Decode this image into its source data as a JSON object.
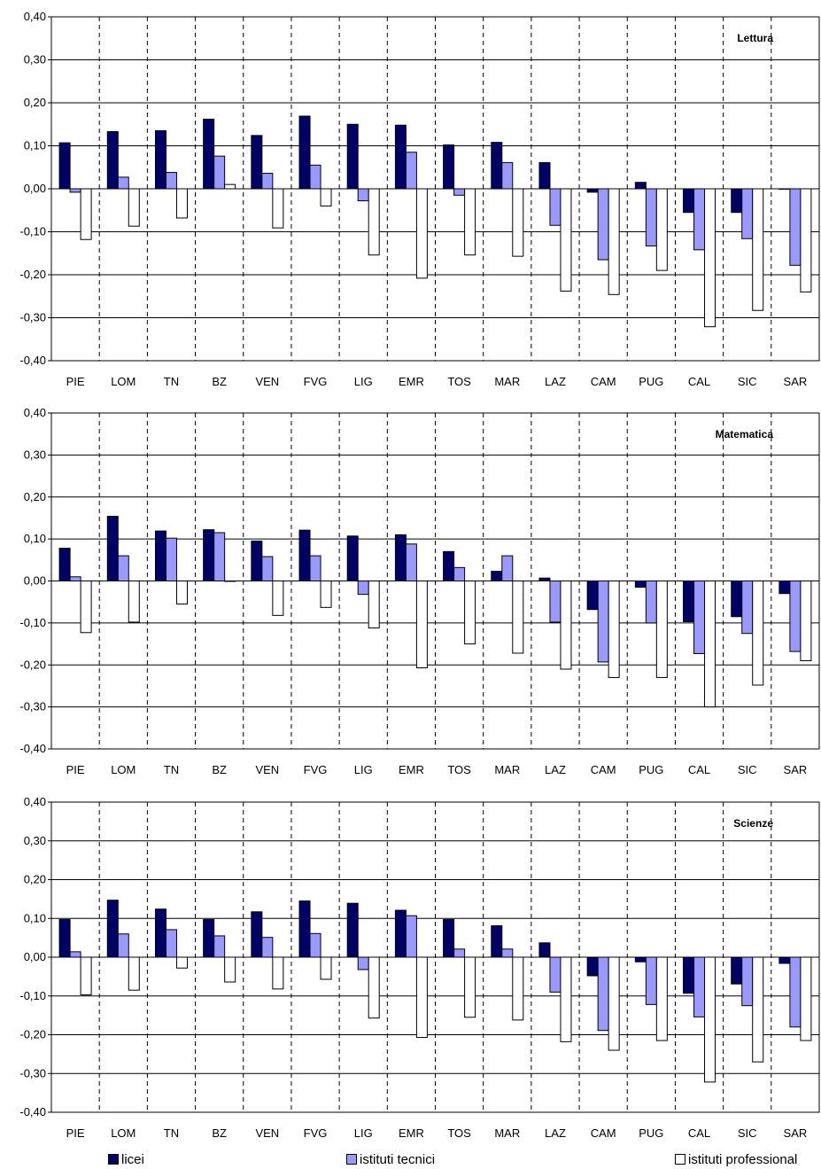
{
  "colors": {
    "licei": "#000066",
    "istituti_tecnici": "#9999ff",
    "istituti_professionali": "#ffffff"
  },
  "legend": [
    {
      "label": "licei",
      "key": "licei"
    },
    {
      "label": "istituti tecnici",
      "key": "istituti_tecnici"
    },
    {
      "label": "istituti professional",
      "key": "istituti_professionali"
    }
  ],
  "chart_data": [
    {
      "type": "bar",
      "title": "Lettura",
      "categories": [
        "PIE",
        "LOM",
        "TN",
        "BZ",
        "VEN",
        "FVG",
        "LIG",
        "EMR",
        "TOS",
        "MAR",
        "LAZ",
        "CAM",
        "PUG",
        "CAL",
        "SIC",
        "SAR"
      ],
      "ylim": [
        -0.4,
        0.4
      ],
      "yticks": [
        "0,40",
        "0,30",
        "0,20",
        "0,10",
        "0,00",
        "-0,10",
        "-0,20",
        "-0,30",
        "-0,40"
      ],
      "grid": true,
      "legend_position": "bottom",
      "series": [
        {
          "name": "licei",
          "values": [
            0.107,
            0.133,
            0.135,
            0.162,
            0.124,
            0.169,
            0.15,
            0.148,
            0.102,
            0.108,
            0.061,
            -0.008,
            0.015,
            -0.055,
            -0.055,
            -0.001
          ]
        },
        {
          "name": "istituti tecnici",
          "values": [
            -0.008,
            0.027,
            0.038,
            0.076,
            0.036,
            0.055,
            -0.028,
            0.085,
            -0.015,
            0.061,
            -0.085,
            -0.165,
            -0.133,
            -0.142,
            -0.116,
            -0.178
          ]
        },
        {
          "name": "istituti professional",
          "values": [
            -0.118,
            -0.087,
            -0.068,
            0.01,
            -0.091,
            -0.04,
            -0.154,
            -0.208,
            -0.154,
            -0.157,
            -0.238,
            -0.246,
            -0.19,
            -0.321,
            -0.283,
            -0.24
          ]
        }
      ]
    },
    {
      "type": "bar",
      "title": "Matematica",
      "categories": [
        "PIE",
        "LOM",
        "TN",
        "BZ",
        "VEN",
        "FVG",
        "LIG",
        "EMR",
        "TOS",
        "MAR",
        "LAZ",
        "CAM",
        "PUG",
        "CAL",
        "SIC",
        "SAR"
      ],
      "ylim": [
        -0.4,
        0.4
      ],
      "yticks": [
        "0,40",
        "0,30",
        "0,20",
        "0,10",
        "0,00",
        "-0,10",
        "-0,20",
        "-0,30",
        "-0,40"
      ],
      "grid": true,
      "legend_position": "bottom",
      "series": [
        {
          "name": "licei",
          "values": [
            0.078,
            0.154,
            0.119,
            0.122,
            0.095,
            0.121,
            0.107,
            0.11,
            0.07,
            0.023,
            0.007,
            -0.068,
            -0.015,
            -0.097,
            -0.085,
            -0.03
          ]
        },
        {
          "name": "istituti tecnici",
          "values": [
            0.01,
            0.06,
            0.102,
            0.115,
            0.058,
            0.06,
            -0.032,
            0.088,
            0.032,
            0.06,
            -0.098,
            -0.193,
            -0.1,
            -0.173,
            -0.125,
            -0.168
          ]
        },
        {
          "name": "istituti professional",
          "values": [
            -0.123,
            -0.098,
            -0.055,
            0.0,
            -0.082,
            -0.063,
            -0.112,
            -0.207,
            -0.15,
            -0.172,
            -0.21,
            -0.23,
            -0.23,
            -0.3,
            -0.248,
            -0.19
          ]
        }
      ]
    },
    {
      "type": "bar",
      "title": "Scienze",
      "categories": [
        "PIE",
        "LOM",
        "TN",
        "BZ",
        "VEN",
        "FVG",
        "LIG",
        "EMR",
        "TOS",
        "MAR",
        "LAZ",
        "CAM",
        "PUG",
        "CAL",
        "SIC",
        "SAR"
      ],
      "ylim": [
        -0.4,
        0.4
      ],
      "yticks": [
        "0,40",
        "0,30",
        "0,20",
        "0,10",
        "0,00",
        "-0,10",
        "-0,20",
        "-0,30",
        "-0,40"
      ],
      "grid": true,
      "legend_position": "bottom",
      "series": [
        {
          "name": "licei",
          "values": [
            0.097,
            0.147,
            0.124,
            0.097,
            0.117,
            0.145,
            0.139,
            0.121,
            0.097,
            0.081,
            0.037,
            -0.048,
            -0.012,
            -0.093,
            -0.069,
            -0.016
          ]
        },
        {
          "name": "istituti tecnici",
          "values": [
            0.014,
            0.06,
            0.071,
            0.055,
            0.051,
            0.061,
            -0.032,
            0.107,
            0.021,
            0.021,
            -0.09,
            -0.189,
            -0.122,
            -0.154,
            -0.125,
            -0.18
          ]
        },
        {
          "name": "istituti professional",
          "values": [
            -0.097,
            -0.085,
            -0.028,
            -0.064,
            -0.082,
            -0.057,
            -0.157,
            -0.207,
            -0.155,
            -0.162,
            -0.218,
            -0.24,
            -0.215,
            -0.322,
            -0.27,
            -0.215
          ]
        }
      ]
    }
  ]
}
